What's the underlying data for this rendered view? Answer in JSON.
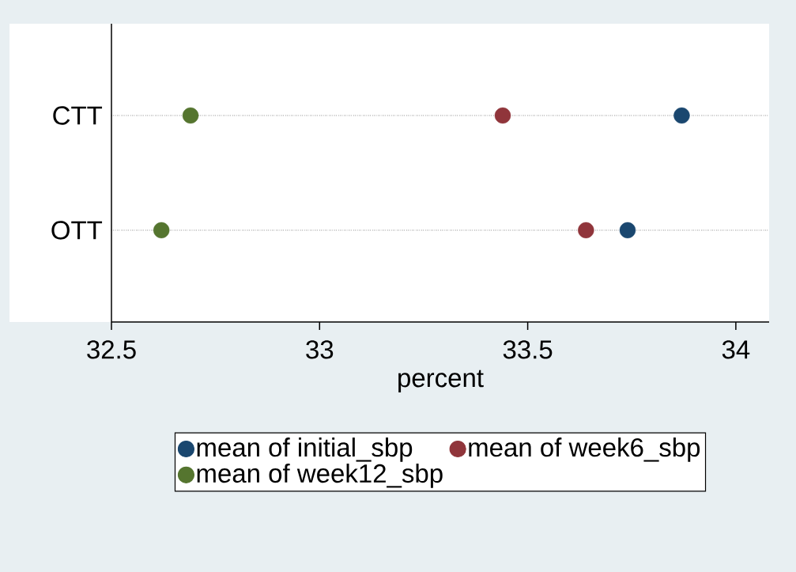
{
  "chart_data": {
    "type": "scatter",
    "orientation": "horizontal",
    "categories": [
      "CTT",
      "OTT"
    ],
    "xlabel": "percent",
    "xlim": [
      32.5,
      34.08
    ],
    "xticks": [
      32.5,
      33,
      33.5,
      34
    ],
    "grid": "y",
    "line_style": "dotted",
    "marker": "circle",
    "legend": "bottom",
    "series": [
      {
        "name": "mean of initial_sbp",
        "color": "#1a476f",
        "values": [
          33.87,
          33.74
        ]
      },
      {
        "name": "mean of week6_sbp",
        "color": "#90353b",
        "values": [
          33.44,
          33.64
        ]
      },
      {
        "name": "mean of week12_sbp",
        "color": "#55752f",
        "values": [
          32.69,
          32.62
        ]
      }
    ]
  }
}
